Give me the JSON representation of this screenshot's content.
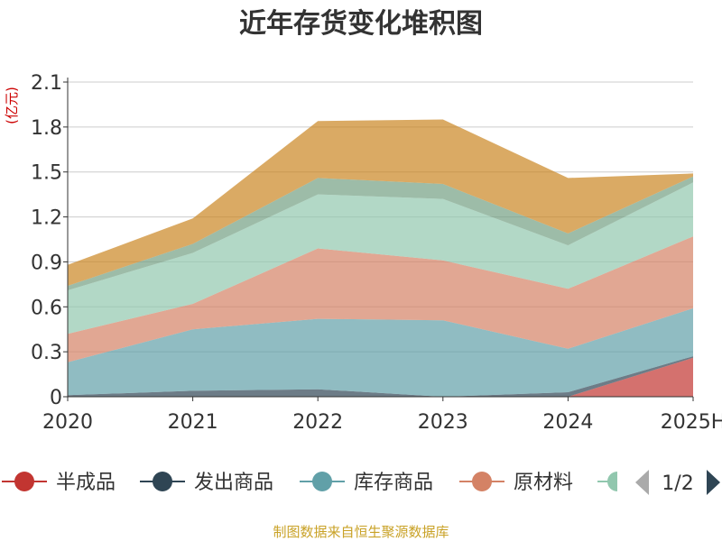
{
  "chart_data": {
    "type": "area",
    "stacked": true,
    "title": "近年存货变化堆积图",
    "ylabel": "(亿元)",
    "categories": [
      "2020",
      "2021",
      "2022",
      "2023",
      "2024",
      "2025H"
    ],
    "yticks": [
      "0",
      "0.3",
      "0.6",
      "0.9",
      "1.2",
      "1.5",
      "1.8",
      "2.1"
    ],
    "ylim": [
      0,
      2.1
    ],
    "grid": true,
    "series": [
      {
        "name": "半成品",
        "color": "#c23531",
        "values": [
          0,
          0,
          0,
          0,
          0,
          0.26
        ]
      },
      {
        "name": "发出商品",
        "color": "#2f4554",
        "values": [
          0.01,
          0.04,
          0.05,
          0,
          0.03,
          0.01
        ]
      },
      {
        "name": "库存商品",
        "color": "#61a0a8",
        "values": [
          0.22,
          0.41,
          0.47,
          0.51,
          0.29,
          0.32
        ]
      },
      {
        "name": "原材料",
        "color": "#d48265",
        "values": [
          0.19,
          0.17,
          0.47,
          0.4,
          0.4,
          0.48
        ]
      },
      {
        "name": "",
        "color": "#91c7ae",
        "values": [
          0.29,
          0.34,
          0.36,
          0.41,
          0.29,
          0.36
        ]
      },
      {
        "name": "",
        "color": "#749f83",
        "values": [
          0.03,
          0.06,
          0.11,
          0.1,
          0.08,
          0.04
        ]
      },
      {
        "name": "",
        "color": "#ca8622",
        "values": [
          0.14,
          0.17,
          0.38,
          0.43,
          0.37,
          0.02
        ]
      }
    ]
  },
  "legend": {
    "items": [
      "半成品",
      "发出商品",
      "库存商品",
      "原材料"
    ],
    "page": "1/2"
  },
  "source": "制图数据来自恒生聚源数据库"
}
